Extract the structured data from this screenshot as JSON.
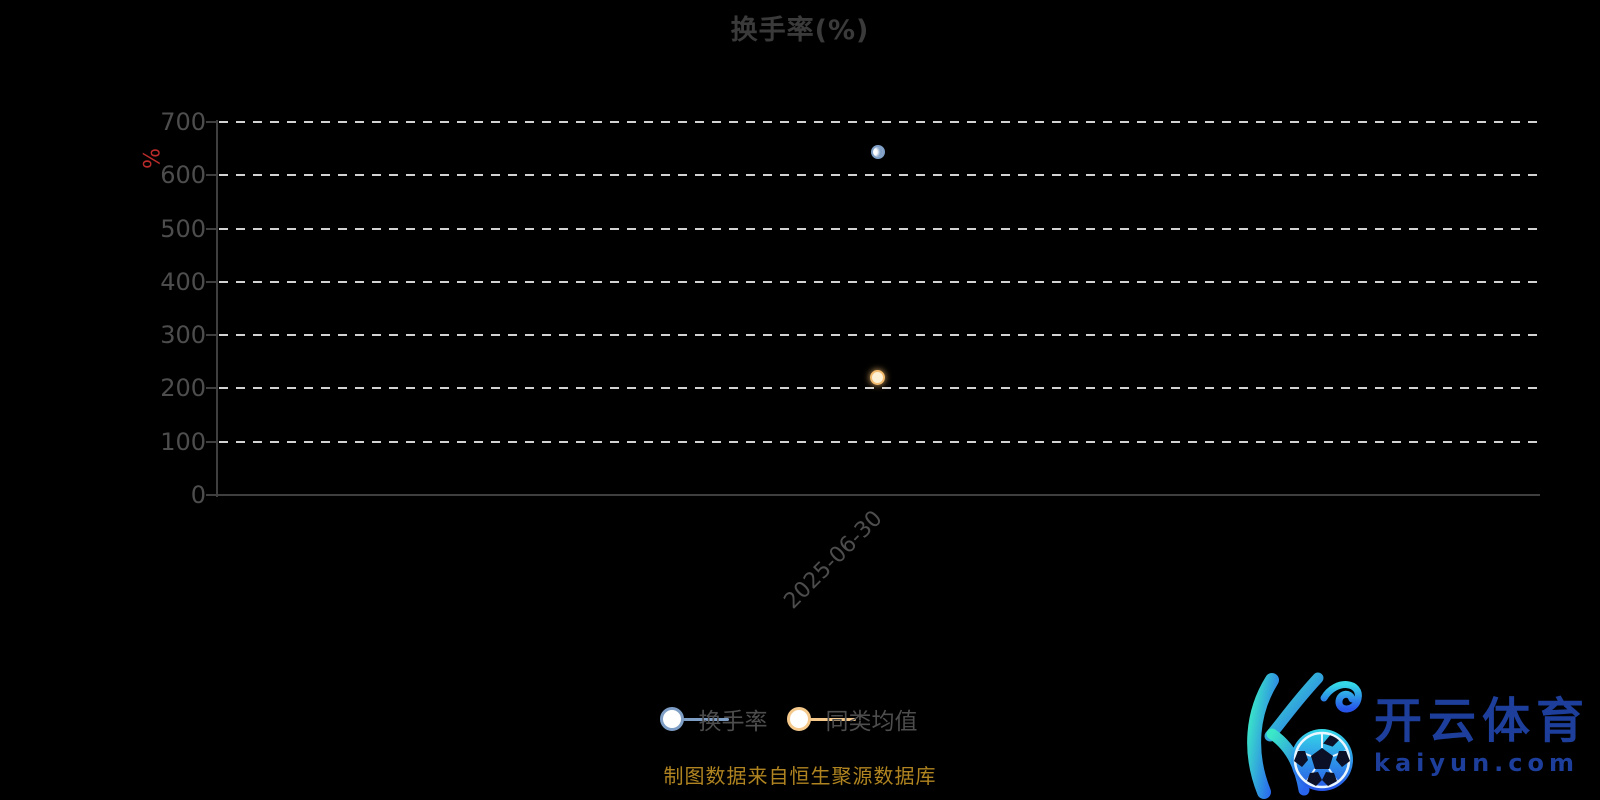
{
  "title": "换手率(%)",
  "y_axis": {
    "unit": "%",
    "ticks": [
      "700",
      "600",
      "500",
      "400",
      "300",
      "200",
      "100",
      "0"
    ]
  },
  "x_axis": {
    "labels": [
      "2025-06-30"
    ]
  },
  "legend": [
    {
      "label": "换手率",
      "color": "#7e9ec5"
    },
    {
      "label": "同类均值",
      "color": "#f5c98c"
    }
  ],
  "footer": {
    "source_note": "制图数据来自恒生聚源数据库"
  },
  "logo": {
    "brand": "开云体育",
    "domain": "kaiyun.com"
  },
  "colors": {
    "background": "#000000",
    "title": "#3a3a3a",
    "axis": "#3f3f3f",
    "labels": "#4d4d4d",
    "grid": "#d2d2d2",
    "unit": "#bb2b2b",
    "footer": "#b08420",
    "series_turnover": "#7e9ec5",
    "series_average": "#f5c98c",
    "logo_text": "#1d3e9a",
    "logo_gradient_start": "#3be8c8",
    "logo_gradient_end": "#2964ef"
  },
  "chart_data": {
    "type": "scatter",
    "title": "换手率(%)",
    "categories": [
      "2025-06-30"
    ],
    "series": [
      {
        "name": "换手率",
        "values": [
          643
        ],
        "color": "#7e9ec5"
      },
      {
        "name": "同类均值",
        "values": [
          220
        ],
        "color": "#f5c98c"
      }
    ],
    "xlabel": "",
    "ylabel": "%",
    "ylim": [
      0,
      700
    ],
    "ytick_interval": 100,
    "grid": "horizontal-dashed",
    "legend_position": "bottom",
    "x_label_rotation": 45
  }
}
